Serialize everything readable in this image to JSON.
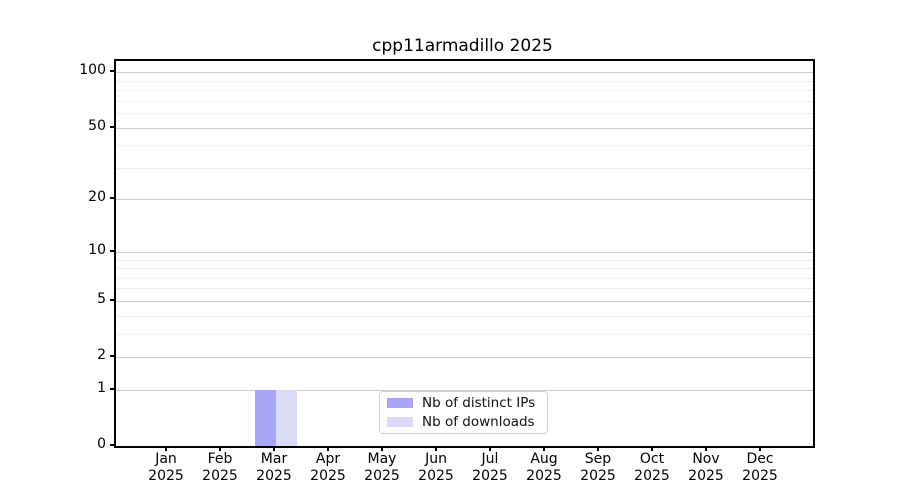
{
  "chart_data": {
    "type": "bar",
    "title": "cpp11armadillo 2025",
    "x_tick_labels": [
      {
        "line1": "Jan",
        "line2": "2025"
      },
      {
        "line1": "Feb",
        "line2": "2025"
      },
      {
        "line1": "Mar",
        "line2": "2025"
      },
      {
        "line1": "Apr",
        "line2": "2025"
      },
      {
        "line1": "May",
        "line2": "2025"
      },
      {
        "line1": "Jun",
        "line2": "2025"
      },
      {
        "line1": "Jul",
        "line2": "2025"
      },
      {
        "line1": "Aug",
        "line2": "2025"
      },
      {
        "line1": "Sep",
        "line2": "2025"
      },
      {
        "line1": "Oct",
        "line2": "2025"
      },
      {
        "line1": "Nov",
        "line2": "2025"
      },
      {
        "line1": "Dec",
        "line2": "2025"
      }
    ],
    "series": [
      {
        "name": "Nb of distinct IPs",
        "color": "#a7a7f6",
        "values": [
          0,
          0,
          1,
          0,
          0,
          0,
          0,
          0,
          0,
          0,
          0,
          0
        ]
      },
      {
        "name": "Nb of downloads",
        "color": "#dbdbf8",
        "values": [
          0,
          0,
          1,
          0,
          0,
          0,
          0,
          0,
          0,
          0,
          0,
          0
        ]
      }
    ],
    "yscale": "log1p",
    "ylim": [
      0,
      115
    ],
    "yticks_major": [
      0,
      1,
      2,
      5,
      10,
      20,
      50,
      100
    ],
    "yticks_minor": [
      3,
      4,
      6,
      7,
      8,
      9,
      30,
      40,
      60,
      70,
      80,
      90
    ],
    "grid": "horizontal",
    "legend_position": "inside-bottom-center"
  }
}
